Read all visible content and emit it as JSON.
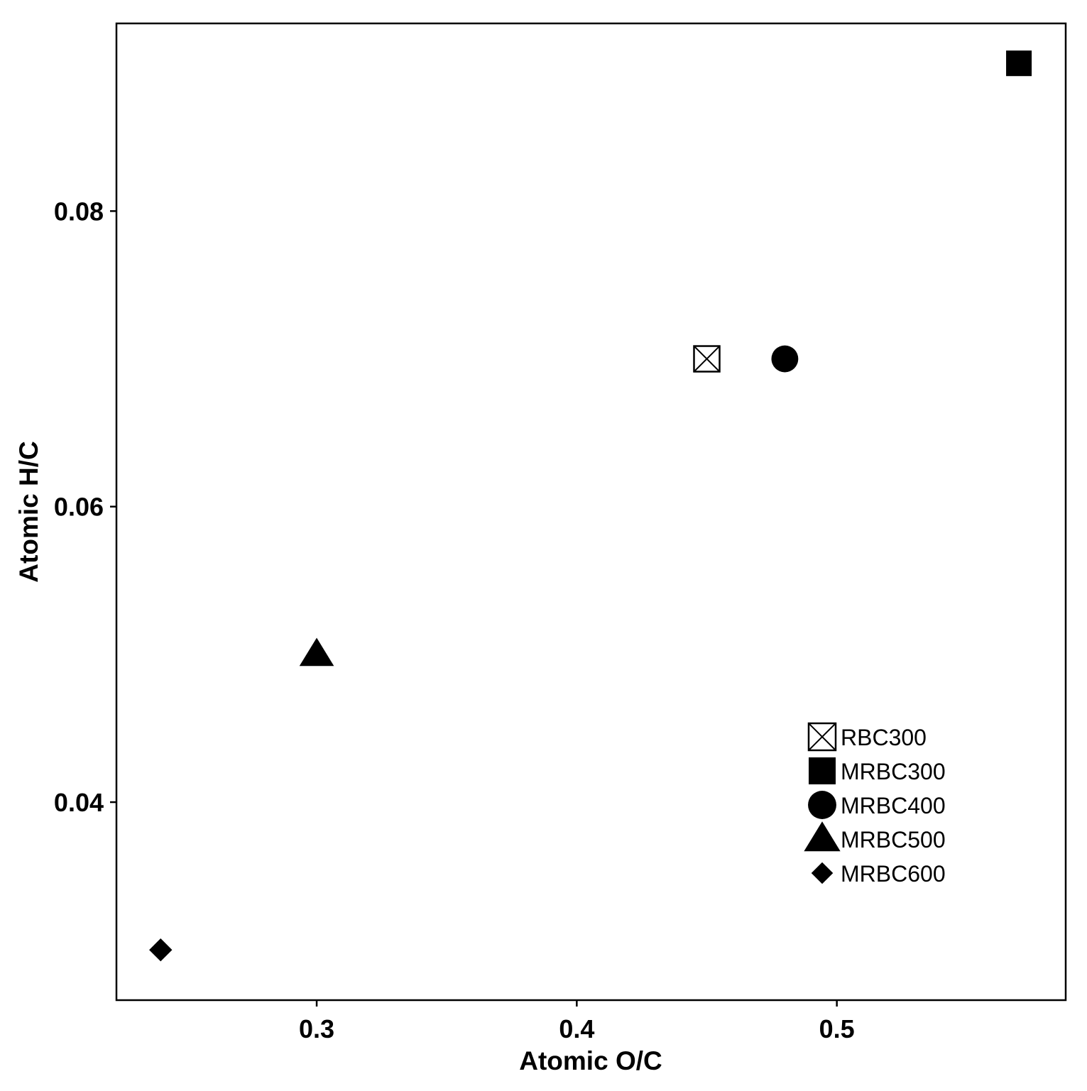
{
  "chart_data": {
    "type": "scatter",
    "title": "",
    "xlabel": "Atomic O/C",
    "ylabel": "Atomic H/C",
    "xlim": [
      0.223,
      0.588
    ],
    "ylim": [
      0.0266,
      0.0927
    ],
    "xticks": [
      {
        "value": 0.3,
        "label": "0.3"
      },
      {
        "value": 0.4,
        "label": "0.4"
      },
      {
        "value": 0.5,
        "label": "0.5"
      }
    ],
    "yticks": [
      {
        "value": 0.04,
        "label": "0.04"
      },
      {
        "value": 0.06,
        "label": "0.06"
      },
      {
        "value": 0.08,
        "label": "0.08"
      }
    ],
    "grid": false,
    "legend_position": "bottom-right",
    "series": [
      {
        "name": "RBC300",
        "marker": "square-x",
        "color": "#000000",
        "x": 0.45,
        "y": 0.07
      },
      {
        "name": "MRBC300",
        "marker": "square",
        "color": "#000000",
        "x": 0.57,
        "y": 0.09
      },
      {
        "name": "MRBC400",
        "marker": "circle",
        "color": "#000000",
        "x": 0.48,
        "y": 0.07
      },
      {
        "name": "MRBC500",
        "marker": "triangle",
        "color": "#000000",
        "x": 0.3,
        "y": 0.05
      },
      {
        "name": "MRBC600",
        "marker": "diamond",
        "color": "#000000",
        "x": 0.24,
        "y": 0.03
      }
    ]
  }
}
